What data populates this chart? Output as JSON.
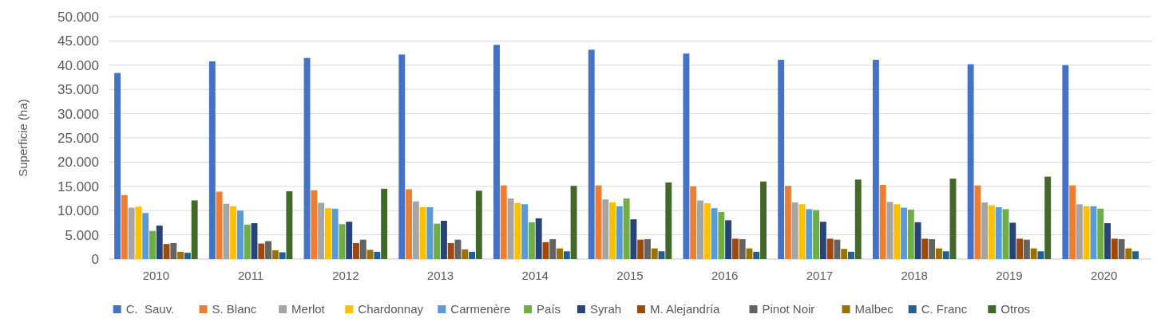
{
  "chart_data": {
    "type": "bar",
    "ylabel": "Superficie (ha)",
    "categories": [
      "2010",
      "2011",
      "2012",
      "2013",
      "2014",
      "2015",
      "2016",
      "2017",
      "2018",
      "2019",
      "2020"
    ],
    "series": [
      {
        "name": "C.  Sauv.",
        "color": "#4472c4",
        "values": [
          38400,
          40800,
          41500,
          42200,
          44200,
          43200,
          42400,
          41100,
          41100,
          40200,
          40000
        ]
      },
      {
        "name": "S. Blanc",
        "color": "#ed7d31",
        "values": [
          13200,
          13900,
          14200,
          14400,
          15200,
          15200,
          15000,
          15100,
          15300,
          15200,
          15200
        ]
      },
      {
        "name": "Merlot",
        "color": "#a5a5a5",
        "values": [
          10600,
          11400,
          11600,
          11900,
          12500,
          12300,
          12100,
          11700,
          11800,
          11700,
          11300
        ]
      },
      {
        "name": "Chardonnay",
        "color": "#ffc000",
        "values": [
          10800,
          10900,
          10500,
          10700,
          11600,
          11700,
          11500,
          11300,
          11300,
          11100,
          10900
        ]
      },
      {
        "name": "Carmenère",
        "color": "#5b9bd5",
        "values": [
          9500,
          10000,
          10400,
          10700,
          11300,
          10900,
          10500,
          10300,
          10600,
          10700,
          10900
        ]
      },
      {
        "name": "País",
        "color": "#70ad47",
        "values": [
          5800,
          7100,
          7200,
          7300,
          7600,
          12500,
          9700,
          10100,
          10200,
          10300,
          10400
        ]
      },
      {
        "name": "Syrah",
        "color": "#264478",
        "values": [
          6900,
          7400,
          7700,
          7900,
          8400,
          8200,
          8000,
          7700,
          7600,
          7500,
          7400
        ]
      },
      {
        "name": "M. Alejandría",
        "color": "#9e480e",
        "values": [
          3100,
          3200,
          3300,
          3300,
          3500,
          4000,
          4200,
          4200,
          4200,
          4200,
          4200
        ]
      },
      {
        "name": "Pinot Noir",
        "color": "#636363",
        "values": [
          3300,
          3700,
          4000,
          4000,
          4100,
          4100,
          4100,
          4000,
          4100,
          4000,
          4100
        ]
      },
      {
        "name": "Malbec",
        "color": "#997300",
        "values": [
          1500,
          1800,
          1900,
          2000,
          2200,
          2200,
          2200,
          2100,
          2200,
          2200,
          2200
        ]
      },
      {
        "name": "C. Franc",
        "color": "#255e91",
        "values": [
          1300,
          1400,
          1500,
          1500,
          1600,
          1600,
          1500,
          1500,
          1600,
          1600,
          1600
        ]
      },
      {
        "name": "Otros",
        "color": "#43682b",
        "values": [
          12100,
          14000,
          14500,
          14100,
          15100,
          15800,
          16000,
          16400,
          16600,
          17000,
          null
        ]
      }
    ],
    "ylim": [
      0,
      50000
    ],
    "yticks": [
      {
        "value": 0,
        "label": "0"
      },
      {
        "value": 5000,
        "label": "5.000"
      },
      {
        "value": 10000,
        "label": "10.000"
      },
      {
        "value": 15000,
        "label": "15.000"
      },
      {
        "value": 20000,
        "label": "20.000"
      },
      {
        "value": 25000,
        "label": "25.000"
      },
      {
        "value": 30000,
        "label": "30.000"
      },
      {
        "value": 35000,
        "label": "35.000"
      },
      {
        "value": 40000,
        "label": "40.000"
      },
      {
        "value": 45000,
        "label": "45.000"
      },
      {
        "value": 50000,
        "label": "50.000"
      }
    ],
    "grid": "y",
    "legend": "bottom"
  }
}
